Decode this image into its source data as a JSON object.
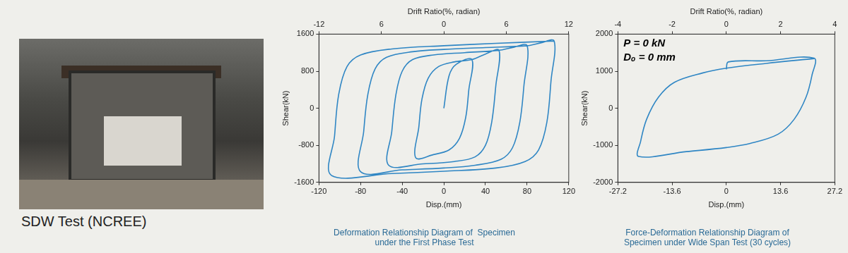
{
  "photo_caption": "SDW Test (NCREE)",
  "chart_data": [
    {
      "type": "line",
      "title": [
        "Deformation Relationship Diagram of  Specimen",
        "under the First Phase Test"
      ],
      "x_label": "Disp.(mm)",
      "y_label": "Shear(kN)",
      "x2_label": "Drift Ratio(%, radian)",
      "xlim": [
        -120,
        120
      ],
      "xticks": [
        -120,
        -80,
        -40,
        0,
        40,
        80,
        120
      ],
      "ylim": [
        -1600,
        1600
      ],
      "yticks": [
        -1600,
        -800,
        0,
        800,
        1600
      ],
      "x2lim": [
        -12,
        12
      ],
      "x2ticks": [
        -12,
        {
          "value": -6,
          "label": "6"
        },
        0,
        6,
        12
      ],
      "grid": false,
      "series": [
        {
          "color": "#2f86c4",
          "x": [
            0,
            5,
            12,
            27,
            24,
            21,
            15,
            5,
            -10,
            -27,
            -24,
            -21,
            -15,
            -5,
            10,
            27,
            40,
            53,
            50,
            46,
            40,
            30,
            10,
            -20,
            -53,
            -50,
            -46,
            -40,
            -30,
            -10,
            20,
            53,
            66,
            80,
            77,
            73,
            66,
            55,
            30,
            0,
            -40,
            -80,
            -77,
            -73,
            -66,
            -55,
            -30,
            0,
            40,
            80,
            93,
            106,
            103,
            99,
            91,
            78,
            50,
            0,
            -50,
            -108,
            -105,
            -101,
            -93,
            -80,
            -50,
            0,
            50,
            106
          ],
          "values": [
            0,
            700,
            950,
            1050,
            400,
            -200,
            -650,
            -900,
            -1000,
            -1070,
            -400,
            200,
            650,
            900,
            1000,
            1050,
            1170,
            1250,
            500,
            -300,
            -800,
            -1050,
            -1150,
            -1200,
            -1230,
            -500,
            300,
            800,
            1050,
            1150,
            1200,
            1250,
            1310,
            1350,
            500,
            -300,
            -850,
            -1100,
            -1230,
            -1290,
            -1330,
            -1370,
            -500,
            300,
            850,
            1100,
            1220,
            1270,
            1310,
            1350,
            1410,
            1450,
            600,
            -300,
            -900,
            -1150,
            -1290,
            -1360,
            -1410,
            -1450,
            -600,
            300,
            900,
            1150,
            1280,
            1350,
            1400,
            1450
          ]
        }
      ]
    },
    {
      "type": "line",
      "title": [
        "Force-Deformation Relationship Diagram of",
        "Specimen under Wide Span Test (30 cycles)"
      ],
      "x_label": "Disp.(mm)",
      "y_label": "Shear(kN)",
      "x2_label": "Drift Ratio(%, radian)",
      "annotations": [
        "P = 0 kN",
        "Dₒ = 0 mm"
      ],
      "xlim": [
        -27.2,
        27.2
      ],
      "xticks": [
        -27.2,
        -13.6,
        0,
        13.6,
        27.2
      ],
      "ylim": [
        -2000,
        2000
      ],
      "yticks": [
        -2000,
        -1000,
        0,
        1000,
        2000
      ],
      "x2lim": [
        -4,
        4
      ],
      "x2ticks": [
        -4,
        -2,
        0,
        2,
        4
      ],
      "grid": false,
      "series": [
        {
          "color": "#2f86c4",
          "x": [
            0,
            0.5,
            10,
            22,
            21.5,
            20,
            17,
            13,
            6,
            0,
            -10,
            -22,
            -21.5,
            -20,
            -17,
            -13,
            -6,
            0,
            10,
            22
          ],
          "values": [
            1050,
            1250,
            1280,
            1350,
            900,
            300,
            -300,
            -700,
            -950,
            -1060,
            -1170,
            -1300,
            -900,
            -300,
            300,
            700,
            950,
            1080,
            1210,
            1340
          ]
        }
      ]
    }
  ]
}
